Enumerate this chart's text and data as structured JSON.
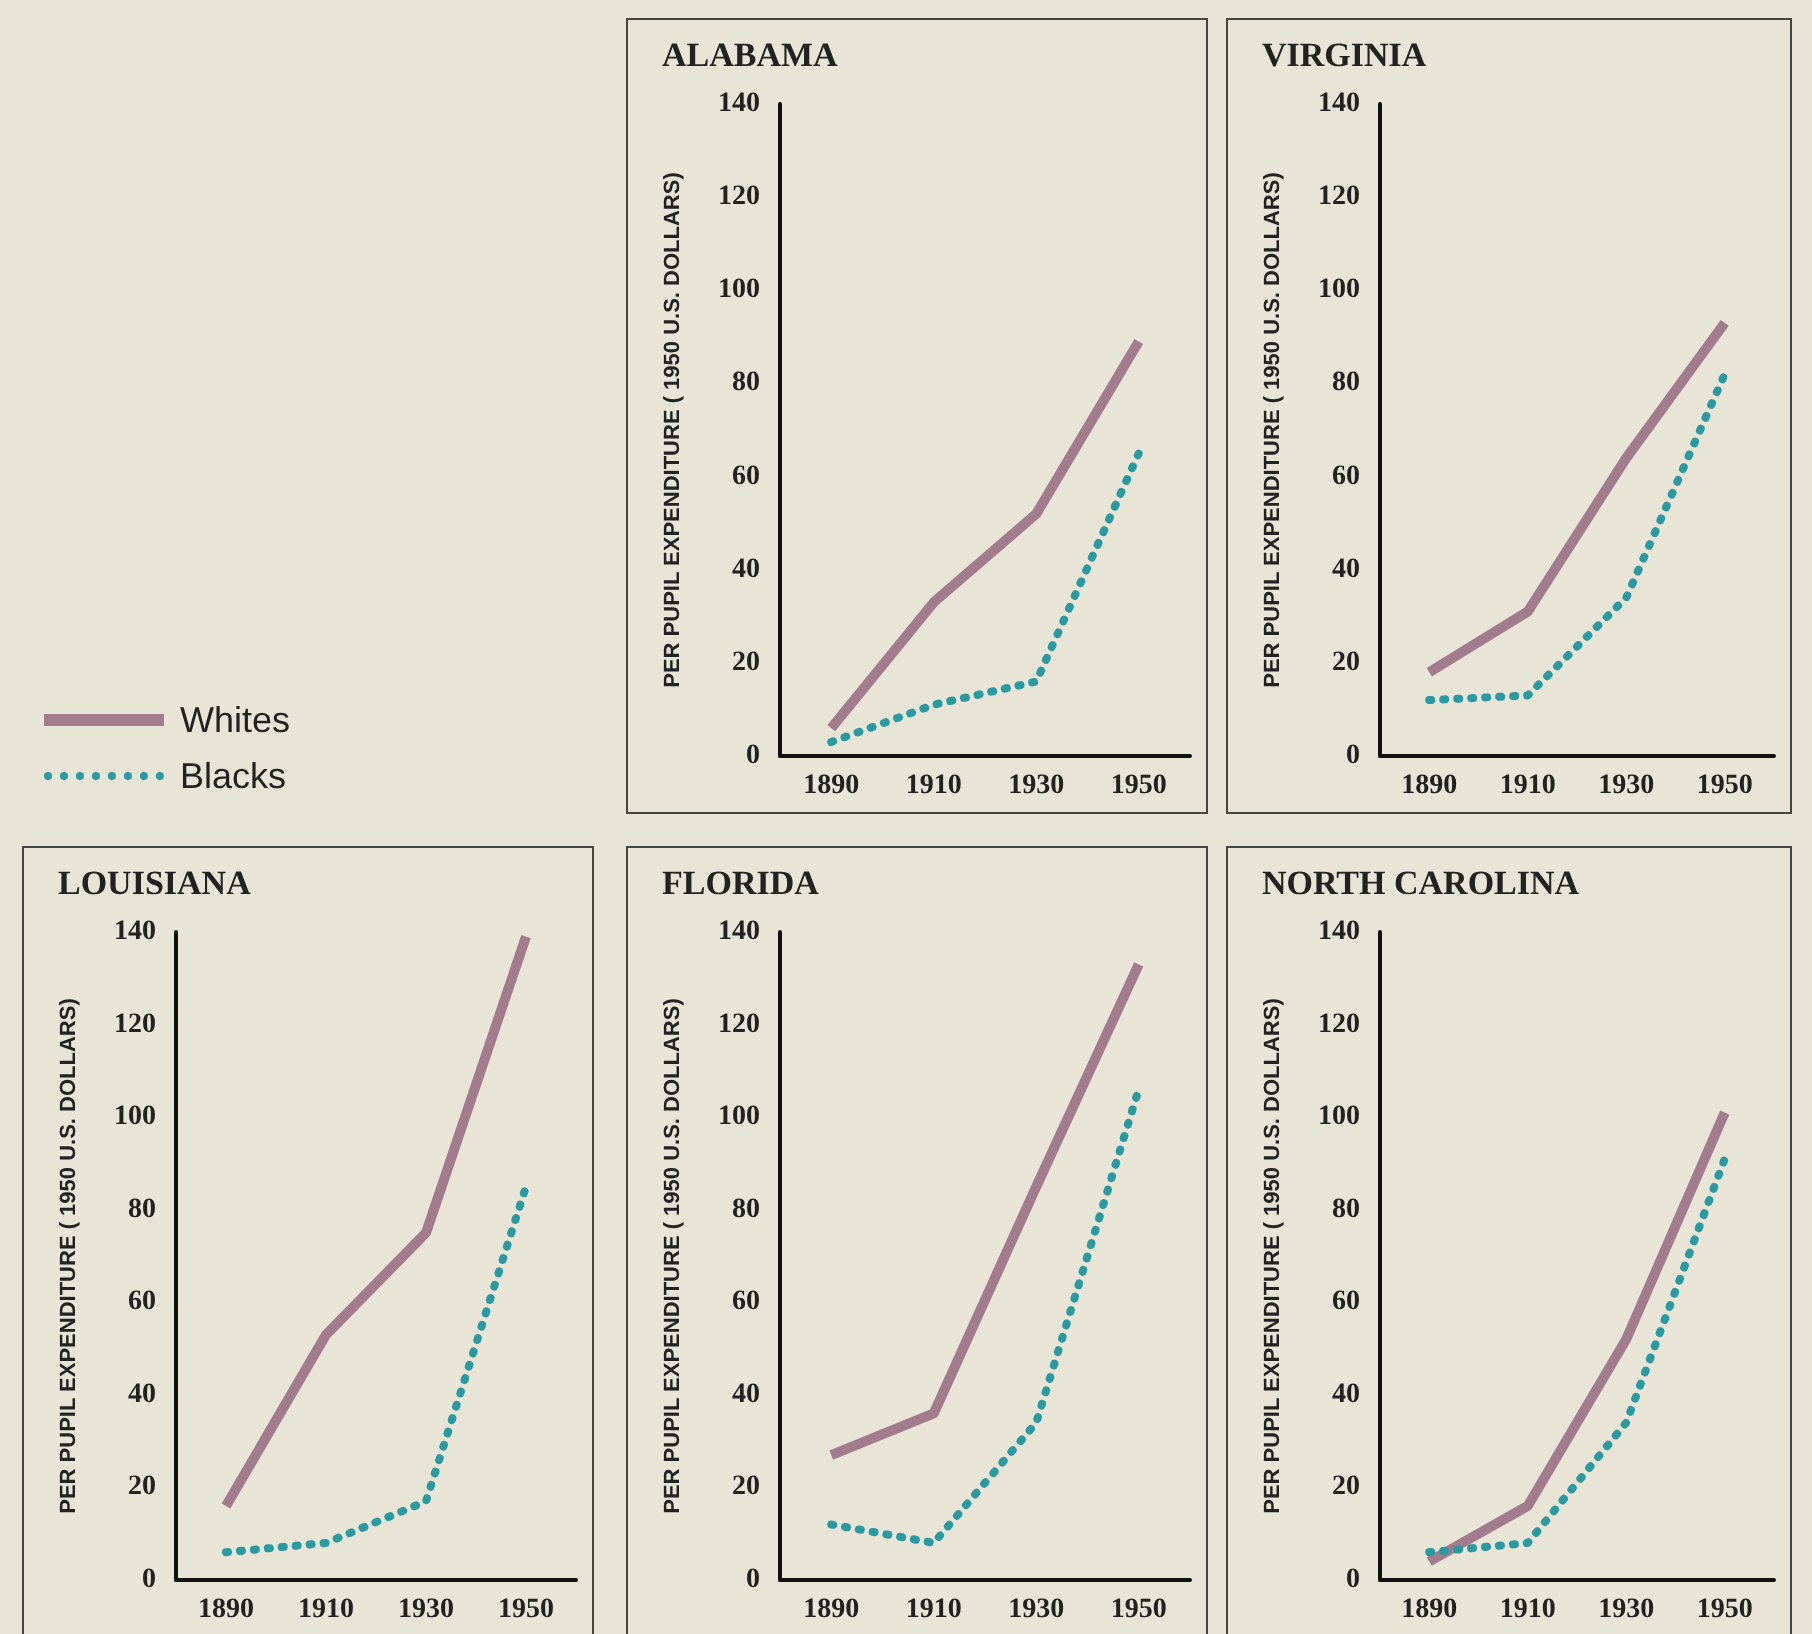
{
  "chart_data": [
    {
      "type": "line",
      "title": "ALABAMA",
      "ylabel": "PER PUPIL EXPENDITURE ( 1950 U.S. DOLLARS)",
      "categories": [
        "1890",
        "1910",
        "1930",
        "1950"
      ],
      "ylim": [
        0,
        140
      ],
      "yticks": [
        0,
        20,
        40,
        60,
        80,
        100,
        120,
        140
      ],
      "legend": "left",
      "marker": "none",
      "series": [
        {
          "name": "Whites",
          "color": "#a27b8d",
          "line_style": "solid",
          "values": [
            6,
            33,
            52,
            89
          ]
        },
        {
          "name": "Blacks",
          "color": "#2a9aa2",
          "line_style": "dotted",
          "values": [
            3,
            11,
            16,
            65
          ]
        }
      ]
    },
    {
      "type": "line",
      "title": "VIRGINIA",
      "ylabel": "PER PUPIL EXPENDITURE ( 1950 U.S. DOLLARS)",
      "categories": [
        "1890",
        "1910",
        "1930",
        "1950"
      ],
      "ylim": [
        0,
        140
      ],
      "yticks": [
        0,
        20,
        40,
        60,
        80,
        100,
        120,
        140
      ],
      "marker": "none",
      "series": [
        {
          "color": "#a27b8d",
          "line_style": "solid",
          "values": [
            18,
            31,
            64,
            93
          ]
        },
        {
          "color": "#2a9aa2",
          "line_style": "dotted",
          "values": [
            12,
            13,
            34,
            82
          ]
        }
      ]
    },
    {
      "type": "line",
      "title": "LOUISIANA",
      "ylabel": "PER PUPIL EXPENDITURE ( 1950 U.S. DOLLARS)",
      "categories": [
        "1890",
        "1910",
        "1930",
        "1950"
      ],
      "ylim": [
        0,
        140
      ],
      "yticks": [
        0,
        20,
        40,
        60,
        80,
        100,
        120,
        140
      ],
      "marker": "none",
      "series": [
        {
          "color": "#a27b8d",
          "line_style": "solid",
          "values": [
            16,
            53,
            75,
            139
          ]
        },
        {
          "color": "#2a9aa2",
          "line_style": "dotted",
          "values": [
            6,
            8,
            17,
            85
          ]
        }
      ]
    },
    {
      "type": "line",
      "title": "FLORIDA",
      "ylabel": "PER PUPIL EXPENDITURE ( 1950 U.S. DOLLARS)",
      "categories": [
        "1890",
        "1910",
        "1930",
        "1950"
      ],
      "ylim": [
        0,
        140
      ],
      "yticks": [
        0,
        20,
        40,
        60,
        80,
        100,
        120,
        140
      ],
      "marker": "none",
      "series": [
        {
          "color": "#a27b8d",
          "line_style": "solid",
          "values": [
            27,
            36,
            85,
            133
          ]
        },
        {
          "color": "#2a9aa2",
          "line_style": "dotted",
          "values": [
            12,
            8,
            34,
            106
          ]
        }
      ]
    },
    {
      "type": "line",
      "title": "NORTH CAROLINA",
      "ylabel": "PER PUPIL EXPENDITURE ( 1950 U.S. DOLLARS)",
      "categories": [
        "1890",
        "1910",
        "1930",
        "1950"
      ],
      "ylim": [
        0,
        140
      ],
      "yticks": [
        0,
        20,
        40,
        60,
        80,
        100,
        120,
        140
      ],
      "marker": "none",
      "series": [
        {
          "color": "#a27b8d",
          "line_style": "solid",
          "values": [
            4,
            16,
            52,
            101
          ]
        },
        {
          "color": "#2a9aa2",
          "line_style": "dotted",
          "values": [
            6,
            8,
            34,
            91
          ]
        }
      ]
    }
  ]
}
